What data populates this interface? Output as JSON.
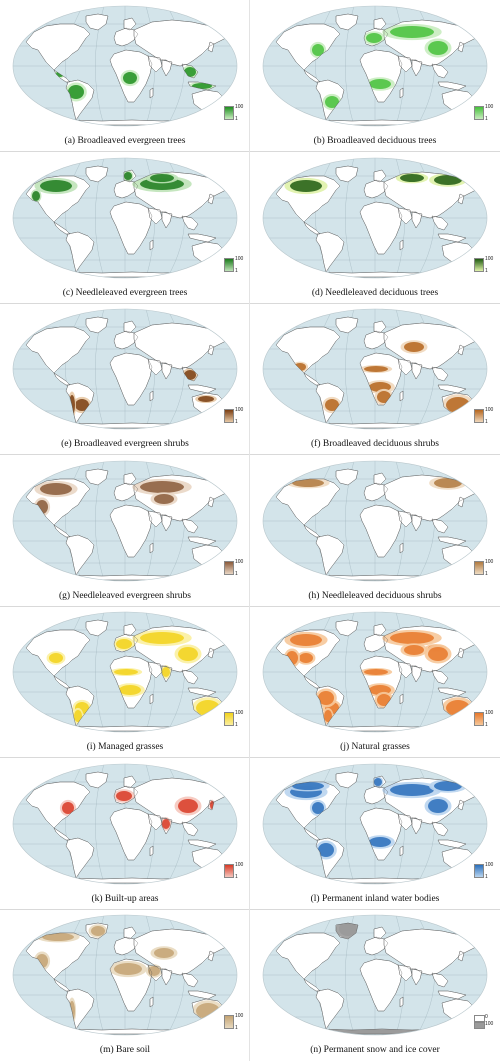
{
  "figure": {
    "ocean_color": "#d3e4ea",
    "land_color": "#ffffff",
    "panels": [
      {
        "caption": "(a) Broadleaved evergreen trees",
        "color": "#1f8f1f",
        "light": "#c9ecc0",
        "legend_max": "100",
        "legend_min": "1",
        "regions": [
          "amazon",
          "congo",
          "se_asia",
          "indonesia",
          "central_america"
        ]
      },
      {
        "caption": "(b) Broadleaved deciduous trees",
        "color": "#46c13a",
        "light": "#c9ecc0",
        "legend_max": "100",
        "legend_min": "1",
        "regions": [
          "eastern_usa",
          "europe",
          "russia",
          "africa_savanna",
          "china",
          "brazil_south"
        ]
      },
      {
        "caption": "(c) Needleleaved evergreen trees",
        "color": "#1b7a1b",
        "light": "#bfe3b8",
        "legend_max": "100",
        "legend_min": "1",
        "regions": [
          "canada",
          "pacific_nw",
          "scandinavia",
          "russia",
          "siberia_w"
        ]
      },
      {
        "caption": "(d) Needleleaved deciduous trees",
        "color": "#1f5a10",
        "light": "#dff2a8",
        "legend_max": "100",
        "legend_min": "1",
        "regions": [
          "siberia_e",
          "siberia_w",
          "canada"
        ]
      },
      {
        "caption": "(e) Broadleaved evergreen shrubs",
        "color": "#7a3e12",
        "light": "#e7c9a6",
        "legend_max": "100",
        "legend_min": "1",
        "regions": [
          "brazil_south",
          "andes",
          "australia_north",
          "se_asia"
        ]
      },
      {
        "caption": "(f) Broadleaved deciduous shrubs",
        "color": "#b5651d",
        "light": "#efd7bb",
        "legend_max": "100",
        "legend_min": "1",
        "regions": [
          "africa_savanna",
          "southern_africa",
          "sahel",
          "australia",
          "mexico",
          "brazil_south",
          "central_asia"
        ]
      },
      {
        "caption": "(g) Needleleaved evergreen shrubs",
        "color": "#8a5a3a",
        "light": "#e9d6c4",
        "legend_max": "100",
        "legend_min": "1",
        "regions": [
          "canada",
          "western_usa",
          "russia",
          "central_asia"
        ]
      },
      {
        "caption": "(h) Needleleaved deciduous shrubs",
        "color": "#b07a40",
        "light": "#efdcc3",
        "legend_max": "100",
        "legend_min": "1",
        "regions": [
          "canada_north",
          "siberia_e"
        ]
      },
      {
        "caption": "(i) Managed grasses",
        "color": "#f2d21b",
        "light": "#fbefa0",
        "legend_max": "100",
        "legend_min": "1",
        "regions": [
          "usa_plains",
          "europe",
          "russia",
          "india",
          "china",
          "sahel",
          "africa_savanna",
          "brazil_south",
          "argentina",
          "australia"
        ]
      },
      {
        "caption": "(j) Natural grasses",
        "color": "#e8782a",
        "light": "#f6c89a",
        "legend_max": "100",
        "legend_min": "1",
        "regions": [
          "canada",
          "usa_plains",
          "western_usa",
          "russia",
          "central_asia",
          "mongolia",
          "africa_savanna",
          "southern_africa",
          "brazil_south",
          "argentina",
          "australia",
          "sahel",
          "amazon",
          "china"
        ]
      },
      {
        "caption": "(k) Built-up areas",
        "color": "#d83a26",
        "light": "#f5c6bd",
        "legend_max": "100",
        "legend_min": "1",
        "regions": [
          "eastern_usa",
          "europe",
          "india",
          "china",
          "japan"
        ]
      },
      {
        "caption": "(l) Permanent inland water bodies",
        "color": "#2a6fbb",
        "light": "#b9d4ee",
        "legend_max": "100",
        "legend_min": "1",
        "regions": [
          "canada",
          "canada_north",
          "eastern_usa",
          "russia",
          "siberia_e",
          "amazon",
          "scandinavia",
          "africa_savanna",
          "china"
        ]
      },
      {
        "caption": "(m) Bare soil",
        "color": "#c4a373",
        "light": "#e8d9bf",
        "legend_max": "100",
        "legend_min": "1",
        "regions": [
          "sahara",
          "arabia",
          "central_asia",
          "australia",
          "western_usa",
          "canada_north",
          "greenland_edge",
          "andes"
        ]
      },
      {
        "caption": "(n) Permanent snow and ice cover",
        "color": "#9a9a9a",
        "light": "#9a9a9a",
        "legend_max": "100",
        "legend_min": "0",
        "regions": [
          "greenland",
          "antarctica"
        ]
      }
    ]
  }
}
